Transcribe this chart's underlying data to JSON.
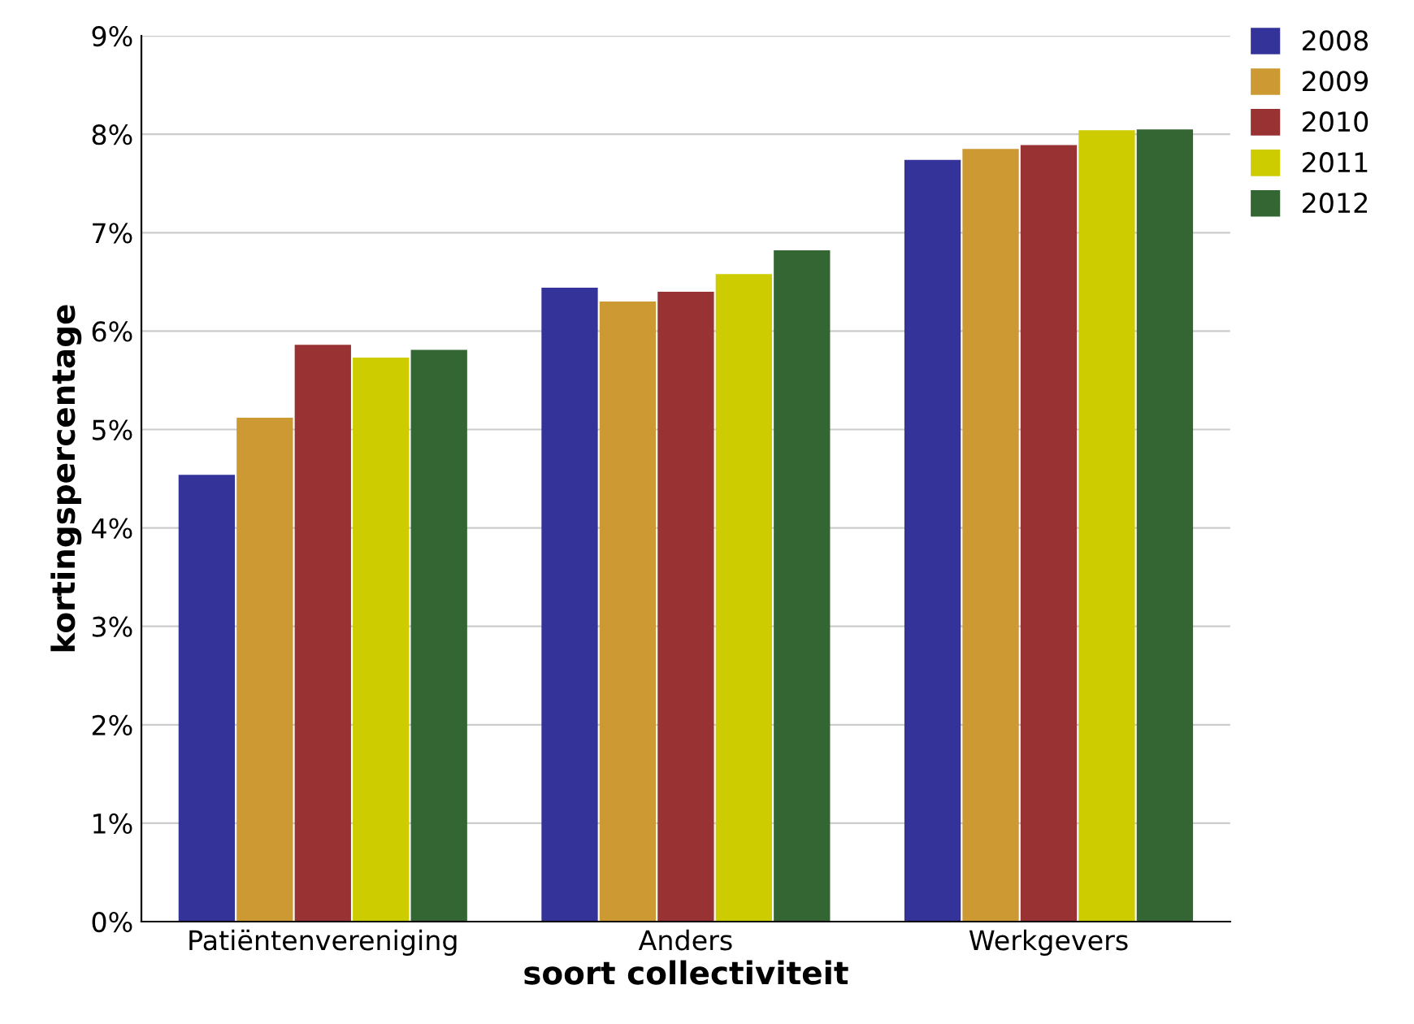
{
  "chart_data": {
    "type": "bar",
    "xlabel": "soort collectiviteit",
    "ylabel": "kortingspercentage",
    "categories": [
      "Patiëntenvereniging",
      "Anders",
      "Werkgevers"
    ],
    "series": [
      {
        "name": "2008",
        "color": "#333399",
        "values": [
          4.54,
          6.44,
          7.74
        ]
      },
      {
        "name": "2009",
        "color": "#cc9933",
        "values": [
          5.12,
          6.3,
          7.85
        ]
      },
      {
        "name": "2010",
        "color": "#993333",
        "values": [
          5.86,
          6.4,
          7.89
        ]
      },
      {
        "name": "2011",
        "color": "#cccc00",
        "values": [
          5.73,
          6.58,
          8.04
        ]
      },
      {
        "name": "2012",
        "color": "#336633",
        "values": [
          5.81,
          6.82,
          8.05
        ]
      }
    ],
    "ylim": [
      0,
      9
    ],
    "yticks": [
      {
        "value": 0,
        "label": "0%"
      },
      {
        "value": 1,
        "label": "1%"
      },
      {
        "value": 2,
        "label": "2%"
      },
      {
        "value": 3,
        "label": "3%"
      },
      {
        "value": 4,
        "label": "4%"
      },
      {
        "value": 5,
        "label": "5%"
      },
      {
        "value": 6,
        "label": "6%"
      },
      {
        "value": 7,
        "label": "7%"
      },
      {
        "value": 8,
        "label": "8%"
      },
      {
        "value": 9,
        "label": "9%"
      }
    ],
    "grid": "y",
    "legend": "top right"
  }
}
